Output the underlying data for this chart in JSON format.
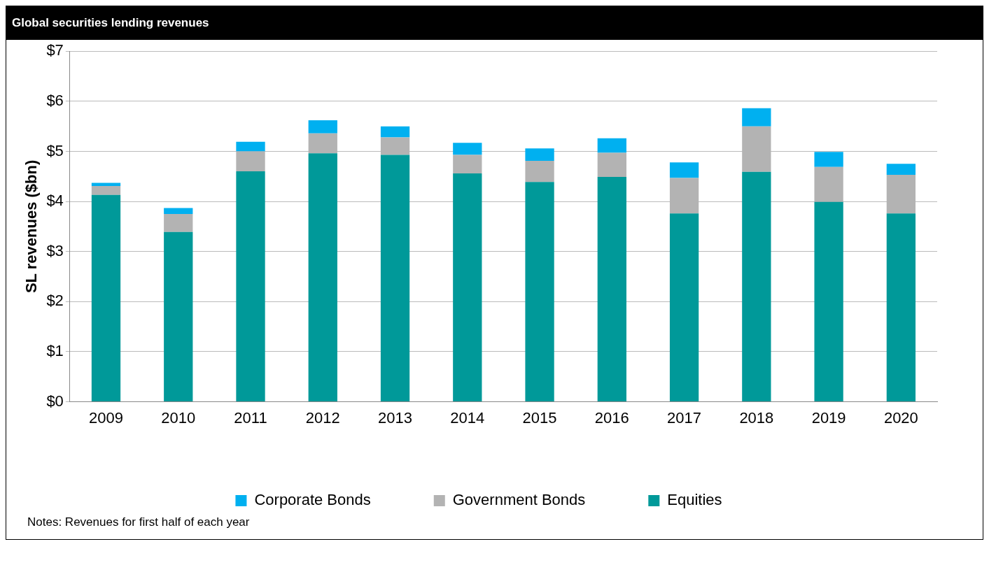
{
  "chart_data": {
    "type": "bar",
    "title": "Global securities lending revenues",
    "ylabel": "SL revenues ($bn)",
    "categories": [
      "2009",
      "2010",
      "2011",
      "2012",
      "2013",
      "2014",
      "2015",
      "2016",
      "2017",
      "2018",
      "2019",
      "2020"
    ],
    "series": [
      {
        "name": "Equities",
        "color": "#009999",
        "values": [
          4.13,
          3.39,
          4.6,
          4.96,
          4.93,
          4.56,
          4.39,
          4.49,
          3.76,
          4.59,
          3.99,
          3.76
        ]
      },
      {
        "name": "Government Bonds",
        "color": "#b3b3b3",
        "values": [
          0.18,
          0.36,
          0.4,
          0.4,
          0.35,
          0.37,
          0.42,
          0.48,
          0.71,
          0.91,
          0.7,
          0.77
        ]
      },
      {
        "name": "Corporate Bonds",
        "color": "#00b0f0",
        "values": [
          0.06,
          0.12,
          0.19,
          0.26,
          0.22,
          0.24,
          0.25,
          0.29,
          0.31,
          0.36,
          0.3,
          0.22
        ]
      }
    ],
    "stacked": true,
    "ylim": [
      0,
      7
    ],
    "yticks": [
      {
        "value": 0,
        "label": "$0"
      },
      {
        "value": 1,
        "label": "$1"
      },
      {
        "value": 2,
        "label": "$2"
      },
      {
        "value": 3,
        "label": "$3"
      },
      {
        "value": 4,
        "label": "$4"
      },
      {
        "value": 5,
        "label": "$5"
      },
      {
        "value": 6,
        "label": "$6"
      },
      {
        "value": 7,
        "label": "$7"
      }
    ],
    "grid": "y",
    "legend": "bottom",
    "annotations": [
      "Notes: Revenues for first half of each year"
    ]
  }
}
